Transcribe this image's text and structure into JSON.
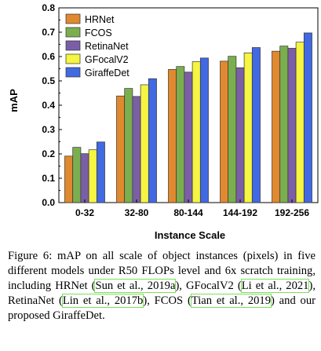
{
  "chart_data": {
    "type": "bar",
    "xlabel": "Instance Scale",
    "ylabel": "mAP",
    "ylim": [
      0,
      0.8
    ],
    "yticks": [
      "0.0",
      "0.1",
      "0.2",
      "0.3",
      "0.4",
      "0.5",
      "0.6",
      "0.7",
      "0.8"
    ],
    "grid": false,
    "legend_position": "top-left",
    "categories": [
      "0-32",
      "32-80",
      "80-144",
      "144-192",
      "192-256"
    ],
    "series": [
      {
        "name": "HRNet",
        "color": "#e0892f",
        "values": [
          0.191,
          0.438,
          0.547,
          0.581,
          0.622
        ]
      },
      {
        "name": "FCOS",
        "color": "#7bae4f",
        "values": [
          0.227,
          0.469,
          0.559,
          0.601,
          0.643
        ]
      },
      {
        "name": "RetinaNet",
        "color": "#7a5fa6",
        "values": [
          0.201,
          0.436,
          0.536,
          0.554,
          0.634
        ]
      },
      {
        "name": "GFocalV2",
        "color": "#f5f542",
        "values": [
          0.217,
          0.484,
          0.579,
          0.615,
          0.659
        ]
      },
      {
        "name": "GiraffeDet",
        "color": "#4169e1",
        "values": [
          0.249,
          0.509,
          0.594,
          0.637,
          0.697
        ]
      }
    ]
  },
  "caption": {
    "p1": "Figure 6: mAP on all scale of object instances (pixels) in five different models under R50 FLOPs level and 6x scratch training, including HRNet (",
    "c1": "Sun et al., 2019a",
    "p2": "), GFocalV2 (",
    "c2": "Li et al., 2021",
    "p3": "), RetinaNet (",
    "c3": "Lin et al., 2017b",
    "p4": "), FCOS (",
    "c4": "Tian et al., 2019",
    "p5": ") and our proposed GiraffeDet."
  }
}
